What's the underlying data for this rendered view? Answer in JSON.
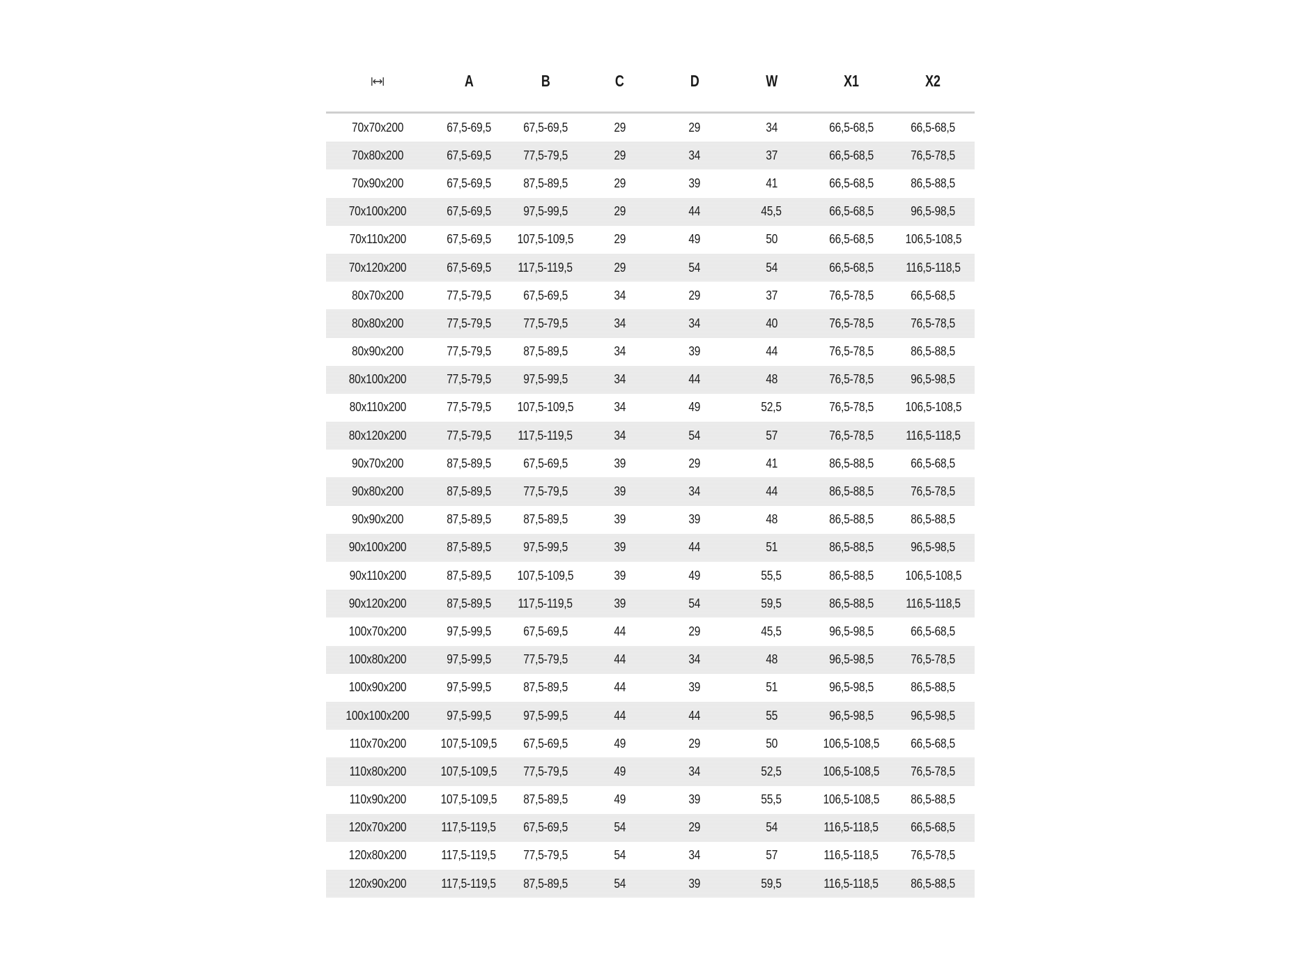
{
  "header": {
    "size_icon": "width-arrow-icon",
    "columns": [
      "A",
      "B",
      "C",
      "D",
      "W",
      "X1",
      "X2"
    ]
  },
  "colors": {
    "row_alt": "#ebebeb",
    "header_rule": "#cfcfcf",
    "text": "#1a1a1a"
  },
  "rows": [
    [
      "70x70x200",
      "67,5-69,5",
      "67,5-69,5",
      "29",
      "29",
      "34",
      "66,5-68,5",
      "66,5-68,5"
    ],
    [
      "70x80x200",
      "67,5-69,5",
      "77,5-79,5",
      "29",
      "34",
      "37",
      "66,5-68,5",
      "76,5-78,5"
    ],
    [
      "70x90x200",
      "67,5-69,5",
      "87,5-89,5",
      "29",
      "39",
      "41",
      "66,5-68,5",
      "86,5-88,5"
    ],
    [
      "70x100x200",
      "67,5-69,5",
      "97,5-99,5",
      "29",
      "44",
      "45,5",
      "66,5-68,5",
      "96,5-98,5"
    ],
    [
      "70x110x200",
      "67,5-69,5",
      "107,5-109,5",
      "29",
      "49",
      "50",
      "66,5-68,5",
      "106,5-108,5"
    ],
    [
      "70x120x200",
      "67,5-69,5",
      "117,5-119,5",
      "29",
      "54",
      "54",
      "66,5-68,5",
      "116,5-118,5"
    ],
    [
      "80x70x200",
      "77,5-79,5",
      "67,5-69,5",
      "34",
      "29",
      "37",
      "76,5-78,5",
      "66,5-68,5"
    ],
    [
      "80x80x200",
      "77,5-79,5",
      "77,5-79,5",
      "34",
      "34",
      "40",
      "76,5-78,5",
      "76,5-78,5"
    ],
    [
      "80x90x200",
      "77,5-79,5",
      "87,5-89,5",
      "34",
      "39",
      "44",
      "76,5-78,5",
      "86,5-88,5"
    ],
    [
      "80x100x200",
      "77,5-79,5",
      "97,5-99,5",
      "34",
      "44",
      "48",
      "76,5-78,5",
      "96,5-98,5"
    ],
    [
      "80x110x200",
      "77,5-79,5",
      "107,5-109,5",
      "34",
      "49",
      "52,5",
      "76,5-78,5",
      "106,5-108,5"
    ],
    [
      "80x120x200",
      "77,5-79,5",
      "117,5-119,5",
      "34",
      "54",
      "57",
      "76,5-78,5",
      "116,5-118,5"
    ],
    [
      "90x70x200",
      "87,5-89,5",
      "67,5-69,5",
      "39",
      "29",
      "41",
      "86,5-88,5",
      "66,5-68,5"
    ],
    [
      "90x80x200",
      "87,5-89,5",
      "77,5-79,5",
      "39",
      "34",
      "44",
      "86,5-88,5",
      "76,5-78,5"
    ],
    [
      "90x90x200",
      "87,5-89,5",
      "87,5-89,5",
      "39",
      "39",
      "48",
      "86,5-88,5",
      "86,5-88,5"
    ],
    [
      "90x100x200",
      "87,5-89,5",
      "97,5-99,5",
      "39",
      "44",
      "51",
      "86,5-88,5",
      "96,5-98,5"
    ],
    [
      "90x110x200",
      "87,5-89,5",
      "107,5-109,5",
      "39",
      "49",
      "55,5",
      "86,5-88,5",
      "106,5-108,5"
    ],
    [
      "90x120x200",
      "87,5-89,5",
      "117,5-119,5",
      "39",
      "54",
      "59,5",
      "86,5-88,5",
      "116,5-118,5"
    ],
    [
      "100x70x200",
      "97,5-99,5",
      "67,5-69,5",
      "44",
      "29",
      "45,5",
      "96,5-98,5",
      "66,5-68,5"
    ],
    [
      "100x80x200",
      "97,5-99,5",
      "77,5-79,5",
      "44",
      "34",
      "48",
      "96,5-98,5",
      "76,5-78,5"
    ],
    [
      "100x90x200",
      "97,5-99,5",
      "87,5-89,5",
      "44",
      "39",
      "51",
      "96,5-98,5",
      "86,5-88,5"
    ],
    [
      "100x100x200",
      "97,5-99,5",
      "97,5-99,5",
      "44",
      "44",
      "55",
      "96,5-98,5",
      "96,5-98,5"
    ],
    [
      "110x70x200",
      "107,5-109,5",
      "67,5-69,5",
      "49",
      "29",
      "50",
      "106,5-108,5",
      "66,5-68,5"
    ],
    [
      "110x80x200",
      "107,5-109,5",
      "77,5-79,5",
      "49",
      "34",
      "52,5",
      "106,5-108,5",
      "76,5-78,5"
    ],
    [
      "110x90x200",
      "107,5-109,5",
      "87,5-89,5",
      "49",
      "39",
      "55,5",
      "106,5-108,5",
      "86,5-88,5"
    ],
    [
      "120x70x200",
      "117,5-119,5",
      "67,5-69,5",
      "54",
      "29",
      "54",
      "116,5-118,5",
      "66,5-68,5"
    ],
    [
      "120x80x200",
      "117,5-119,5",
      "77,5-79,5",
      "54",
      "34",
      "57",
      "116,5-118,5",
      "76,5-78,5"
    ],
    [
      "120x90x200",
      "117,5-119,5",
      "87,5-89,5",
      "54",
      "39",
      "59,5",
      "116,5-118,5",
      "86,5-88,5"
    ]
  ]
}
